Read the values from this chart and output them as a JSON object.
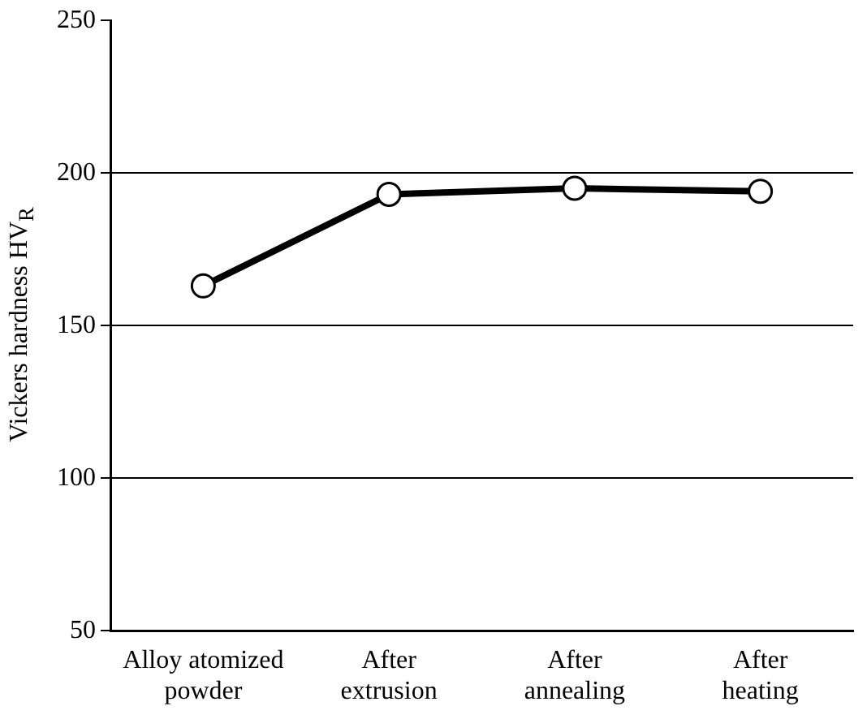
{
  "chart_data": {
    "type": "line",
    "ylabel": "Vickers hardness HV$_{R}$",
    "categories": [
      "Alloy atomized powder",
      "After extrusion",
      "After annealing",
      "After heating"
    ],
    "series": [
      {
        "color": "#000000",
        "values": [
          163,
          193,
          195,
          194
        ]
      }
    ],
    "ylim": [
      50,
      250
    ],
    "yticks": [
      50,
      100,
      150,
      200,
      250
    ],
    "grid": "y",
    "marker": "circle",
    "line_style": "solid",
    "legend": false
  }
}
